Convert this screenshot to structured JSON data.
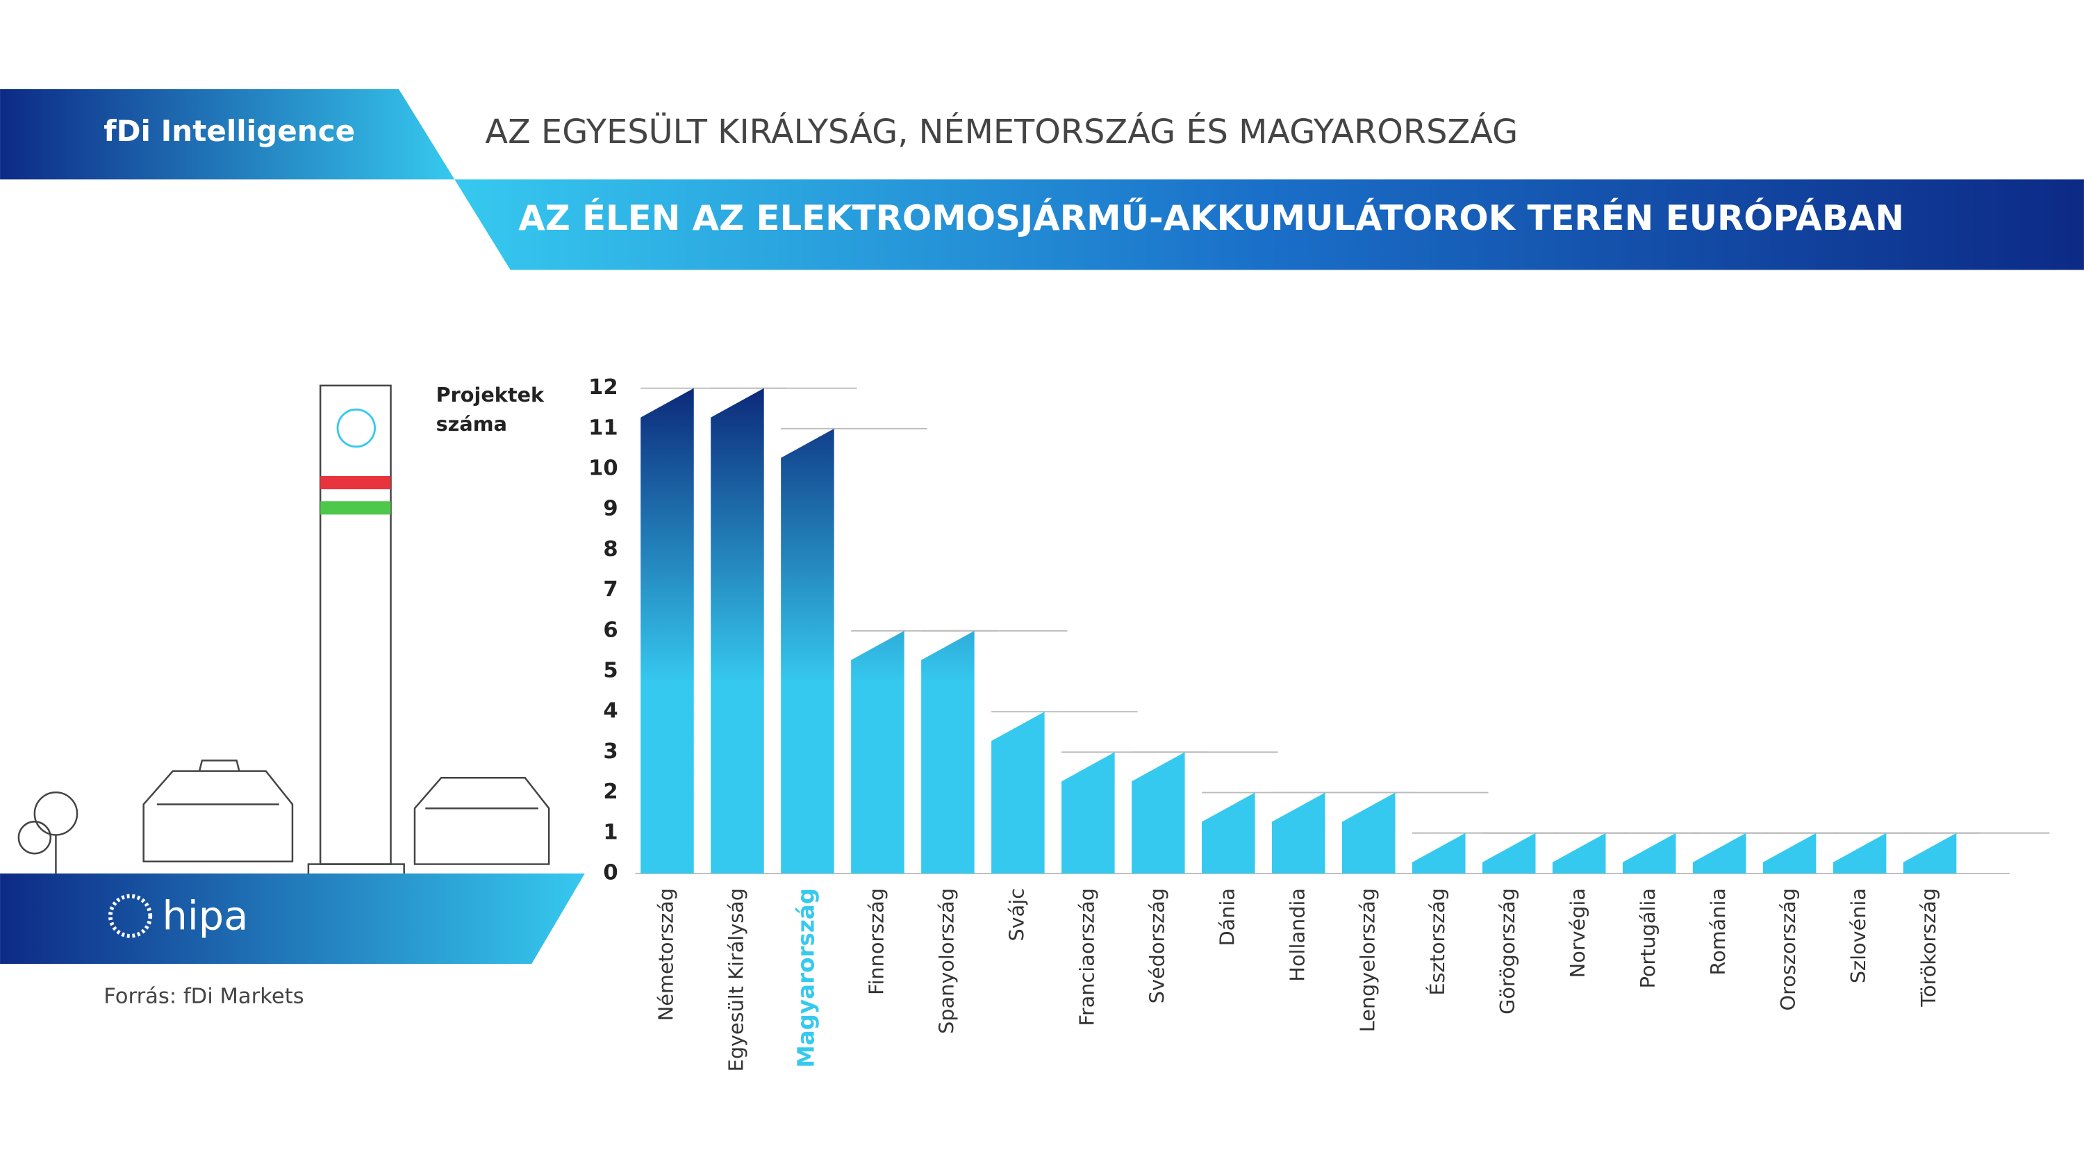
{
  "header": {
    "brand": "fDi Intelligence",
    "title": "AZ EGYESÜLT KIRÁLYSÁG, NÉMETORSZÁG ÉS MAGYARORSZÁG",
    "subtitle": "AZ ÉLEN AZ ELEKTROMOSJÁRMŰ-AKKUMULÁTOROK TERÉN EURÓPÁBAN"
  },
  "footer": {
    "logo": "hipa",
    "source": "Forrás: fDi Markets"
  },
  "chart_data": {
    "type": "bar",
    "ylabel": "Projektek száma",
    "categories": [
      "Németország",
      "Egyesült Királyság",
      "Magyarország",
      "Finnország",
      "Spanyolország",
      "Svájc",
      "Franciaország",
      "Svédország",
      "Dánia",
      "Hollandia",
      "Lengyelország",
      "Észtország",
      "Görögország",
      "Norvégia",
      "Portugália",
      "Románia",
      "Oroszország",
      "Szlovénia",
      "Törökország"
    ],
    "values": [
      12,
      12,
      11,
      6,
      6,
      4,
      3,
      3,
      2,
      2,
      2,
      1,
      1,
      1,
      1,
      1,
      1,
      1,
      1
    ],
    "color_top": "#0c2a7a",
    "color_bottom": "#36c9ef",
    "highlight": "Magyarország",
    "highlight_color": "#36c9ef",
    "ylim": [
      0,
      12
    ],
    "yticks": [
      0,
      1,
      2,
      3,
      4,
      5,
      6,
      7,
      8,
      9,
      10,
      11,
      12
    ],
    "grid": false
  }
}
